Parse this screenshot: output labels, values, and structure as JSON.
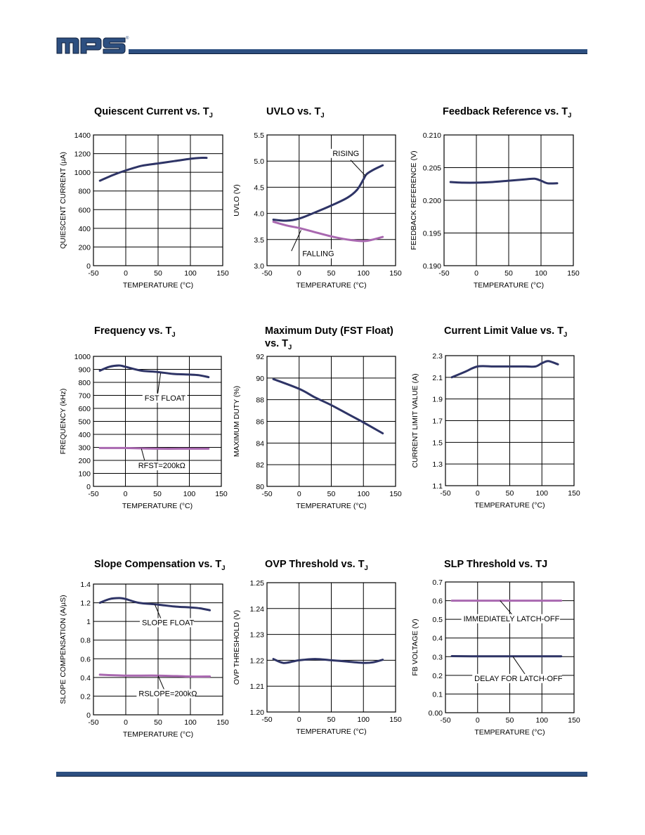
{
  "brand": {
    "logo_text": "mps",
    "registered": "®",
    "primary_color": "#2d4f80",
    "curve_dark": "#2e3466",
    "curve_light": "#a968b0"
  },
  "chart_data": [
    {
      "id": "quiescent",
      "type": "line",
      "title": "Quiescent Current vs. T",
      "title_sub": "J",
      "xlabel": "TEMPERATURE (°C)",
      "ylabel": "QUIESCENT CURRENT (µA)",
      "xlim": [
        -50,
        150
      ],
      "ylim": [
        0,
        1400
      ],
      "xticks": [
        -50,
        0,
        50,
        100,
        150
      ],
      "yticks": [
        0,
        200,
        400,
        600,
        800,
        1000,
        1200,
        1400
      ],
      "ytick_labels": [
        "0",
        "200",
        "400",
        "600",
        "800",
        "1000",
        "1200",
        "1400"
      ],
      "grid": true,
      "series": [
        {
          "color": "#2e3466",
          "x": [
            -40,
            -20,
            0,
            25,
            50,
            75,
            100,
            115,
            125
          ],
          "y": [
            910,
            970,
            1020,
            1070,
            1095,
            1120,
            1145,
            1155,
            1155
          ]
        }
      ],
      "annotations": []
    },
    {
      "id": "uvlo",
      "type": "line",
      "title": "UVLO vs. T",
      "title_sub": "J",
      "xlabel": "TEMPERATURE (°C)",
      "ylabel": "UVLO (V)",
      "xlim": [
        -50,
        150
      ],
      "ylim": [
        3.0,
        5.5
      ],
      "xticks": [
        -50,
        0,
        50,
        100,
        150
      ],
      "yticks": [
        3.0,
        3.5,
        4.0,
        4.5,
        5.0,
        5.5
      ],
      "ytick_labels": [
        "3.0",
        "3.5",
        "4.0",
        "4.5",
        "5.0",
        "5.5"
      ],
      "grid": true,
      "series": [
        {
          "name": "RISING",
          "color": "#2e3466",
          "x": [
            -40,
            -20,
            0,
            25,
            50,
            75,
            90,
            100,
            105,
            115,
            130
          ],
          "y": [
            3.88,
            3.86,
            3.9,
            4.02,
            4.15,
            4.3,
            4.45,
            4.65,
            4.75,
            4.83,
            4.92
          ]
        },
        {
          "name": "FALLING",
          "color": "#a968b0",
          "x": [
            -40,
            -20,
            0,
            25,
            50,
            75,
            100,
            115,
            130
          ],
          "y": [
            3.84,
            3.77,
            3.72,
            3.64,
            3.56,
            3.5,
            3.47,
            3.5,
            3.55
          ]
        }
      ],
      "annotations": [
        {
          "text": "RISING",
          "x": 52,
          "y": 5.1,
          "lx1": 80,
          "ly1": 5.02,
          "lx2": 103,
          "ly2": 4.72
        },
        {
          "text": "FALLING",
          "x": 5,
          "y": 3.18,
          "lx1": -12,
          "ly1": 3.28,
          "lx2": 3,
          "ly2": 3.68
        }
      ]
    },
    {
      "id": "feedback",
      "type": "line",
      "title": "Feedback Reference vs. T",
      "title_sub": "J",
      "xlabel": "TEMPERATURE (°C)",
      "ylabel": "FEEDBACK REFERENCE (V)",
      "xlim": [
        -50,
        150
      ],
      "ylim": [
        0.19,
        0.21
      ],
      "xticks": [
        -50,
        0,
        50,
        100,
        150
      ],
      "yticks": [
        0.19,
        0.195,
        0.2,
        0.205,
        0.21
      ],
      "ytick_labels": [
        "0.190",
        "0.195",
        "0.200",
        "0.205",
        "0.210"
      ],
      "grid": true,
      "series": [
        {
          "color": "#2e3466",
          "x": [
            -40,
            -20,
            0,
            25,
            50,
            75,
            90,
            100,
            110,
            125
          ],
          "y": [
            0.2028,
            0.2027,
            0.2027,
            0.2028,
            0.203,
            0.2032,
            0.2033,
            0.203,
            0.2026,
            0.2026
          ]
        }
      ],
      "annotations": []
    },
    {
      "id": "frequency",
      "type": "line",
      "title": "Frequency vs. T",
      "title_sub": "J",
      "xlabel": "TEMPERATURE (°C)",
      "ylabel": "FREQUENCY (kHz)",
      "xlim": [
        -50,
        150
      ],
      "ylim": [
        0,
        1000
      ],
      "xticks": [
        -50,
        0,
        50,
        100,
        150
      ],
      "yticks": [
        0,
        100,
        200,
        300,
        400,
        500,
        600,
        700,
        800,
        900,
        1000
      ],
      "ytick_labels": [
        "0",
        "100",
        "200",
        "300",
        "400",
        "500",
        "600",
        "700",
        "800",
        "900",
        "1000"
      ],
      "grid": true,
      "series": [
        {
          "name": "FST FLOAT",
          "color": "#2e3466",
          "x": [
            -40,
            -25,
            -10,
            0,
            25,
            50,
            75,
            100,
            115,
            130
          ],
          "y": [
            890,
            920,
            930,
            920,
            890,
            880,
            865,
            860,
            855,
            840
          ]
        },
        {
          "name": "RFST=200kΩ",
          "color": "#a968b0",
          "x": [
            -40,
            0,
            50,
            100,
            130
          ],
          "y": [
            295,
            295,
            290,
            290,
            290
          ]
        }
      ],
      "annotations": [
        {
          "text": "FST FLOAT",
          "x": 30,
          "y": 660,
          "lx1": 50,
          "ly1": 695,
          "lx2": 55,
          "ly2": 870
        },
        {
          "text": "RFST=200kΩ",
          "x": 20,
          "y": 140,
          "lx1": 30,
          "ly1": 200,
          "lx2": 25,
          "ly2": 290
        }
      ]
    },
    {
      "id": "maxduty",
      "type": "line",
      "title": "Maximum Duty (FST Float)",
      "title_line2": "vs. T",
      "title_sub": "J",
      "xlabel": "TEMPERATURE (°C)",
      "ylabel": "MAXIMUM DUTY (%)",
      "xlim": [
        -50,
        150
      ],
      "ylim": [
        80,
        92
      ],
      "xticks": [
        -50,
        0,
        50,
        100,
        150
      ],
      "yticks": [
        80,
        82,
        84,
        86,
        88,
        90,
        92
      ],
      "ytick_labels": [
        "80",
        "82",
        "84",
        "86",
        "88",
        "90",
        "92"
      ],
      "grid": true,
      "series": [
        {
          "color": "#2e3466",
          "x": [
            -40,
            0,
            25,
            50,
            75,
            100,
            130
          ],
          "y": [
            89.9,
            89.0,
            88.2,
            87.5,
            86.7,
            85.9,
            84.9
          ]
        }
      ],
      "annotations": []
    },
    {
      "id": "currentlimit",
      "type": "line",
      "title": "Current Limit Value vs. T",
      "title_sub": "J",
      "xlabel": "TEMPERATURE (°C)",
      "ylabel": "CURRENT LIMIT VALUE (A)",
      "xlim": [
        -50,
        150
      ],
      "ylim": [
        1.1,
        2.3
      ],
      "xticks": [
        -50,
        0,
        50,
        100,
        150
      ],
      "yticks": [
        1.1,
        1.3,
        1.5,
        1.7,
        1.9,
        2.1,
        2.3
      ],
      "ytick_labels": [
        "1.1",
        "1.3",
        "1.5",
        "1.7",
        "1.9",
        "2.1",
        "2.3"
      ],
      "grid": true,
      "series": [
        {
          "color": "#2e3466",
          "x": [
            -40,
            -20,
            0,
            25,
            50,
            75,
            90,
            100,
            110,
            125
          ],
          "y": [
            2.1,
            2.15,
            2.2,
            2.2,
            2.2,
            2.2,
            2.2,
            2.23,
            2.25,
            2.22
          ]
        }
      ],
      "annotations": []
    },
    {
      "id": "slope",
      "type": "line",
      "title": "Slope Compensation vs. T",
      "title_sub": "J",
      "xlabel": "TEMPERATURE (°C)",
      "ylabel": "SLOPE COMPENSATION (A/µS)",
      "xlim": [
        -50,
        150
      ],
      "ylim": [
        0,
        1.4
      ],
      "xticks": [
        -50,
        0,
        50,
        100,
        150
      ],
      "yticks": [
        0,
        0.2,
        0.4,
        0.6,
        0.8,
        1.0,
        1.2,
        1.4
      ],
      "ytick_labels": [
        "0",
        "0.2",
        "0.4",
        "0.6",
        "0.8",
        "1",
        "1.2",
        "1.4"
      ],
      "grid": true,
      "series": [
        {
          "name": "SLOPE FLOAT",
          "color": "#2e3466",
          "x": [
            -40,
            -25,
            -10,
            0,
            20,
            50,
            75,
            100,
            115,
            130
          ],
          "y": [
            1.2,
            1.24,
            1.25,
            1.24,
            1.2,
            1.18,
            1.16,
            1.15,
            1.14,
            1.12
          ]
        },
        {
          "name": "RSLOPE=200kΩ",
          "color": "#a968b0",
          "x": [
            -40,
            0,
            50,
            100,
            130
          ],
          "y": [
            0.43,
            0.42,
            0.42,
            0.41,
            0.41
          ]
        }
      ],
      "annotations": [
        {
          "text": "SLOPE FLOAT",
          "x": 25,
          "y": 0.96,
          "lx1": 55,
          "ly1": 1.02,
          "lx2": 45,
          "ly2": 1.18
        },
        {
          "text": "RSLOPE=200kΩ",
          "x": 20,
          "y": 0.2,
          "lx1": 60,
          "ly1": 0.26,
          "lx2": 50,
          "ly2": 0.42
        }
      ]
    },
    {
      "id": "ovp",
      "type": "line",
      "title": "OVP Threshold vs. T",
      "title_sub": "J",
      "xlabel": "TEMPERATURE (°C)",
      "ylabel": "OVP THRESHOLD (V)",
      "xlim": [
        -50,
        150
      ],
      "ylim": [
        1.2,
        1.25
      ],
      "xticks": [
        -50,
        0,
        50,
        100,
        150
      ],
      "yticks": [
        1.2,
        1.21,
        1.22,
        1.23,
        1.24,
        1.25
      ],
      "ytick_labels": [
        "1.20",
        "1.21",
        "1.22",
        "1.23",
        "1.24",
        "1.25"
      ],
      "grid": true,
      "series": [
        {
          "color": "#2e3466",
          "x": [
            -40,
            -25,
            -10,
            0,
            25,
            50,
            75,
            100,
            115,
            130
          ],
          "y": [
            1.2205,
            1.219,
            1.2195,
            1.22,
            1.2205,
            1.22,
            1.2195,
            1.219,
            1.2192,
            1.2202
          ]
        }
      ],
      "annotations": []
    },
    {
      "id": "slp",
      "type": "line",
      "title": "SLP Threshold vs. TJ",
      "title_sub": "",
      "xlabel": "TEMPERATURE (°C)",
      "ylabel": "FB VOLTAGE (V)",
      "xlim": [
        -50,
        150
      ],
      "ylim": [
        0,
        0.7
      ],
      "xticks": [
        -50,
        0,
        50,
        100,
        150
      ],
      "yticks": [
        0,
        0.1,
        0.2,
        0.3,
        0.4,
        0.5,
        0.6,
        0.7
      ],
      "ytick_labels": [
        "0.00",
        "0.1",
        "0.2",
        "0.3",
        "0.4",
        "0.5",
        "0.6",
        "0.7"
      ],
      "grid": true,
      "series": [
        {
          "name": "IMMEDIATELY LATCH-OFF",
          "color": "#a968b0",
          "x": [
            -40,
            0,
            50,
            100,
            130
          ],
          "y": [
            0.6,
            0.6,
            0.6,
            0.6,
            0.6
          ]
        },
        {
          "name": "DELAY FOR LATCH-OFF",
          "color": "#2e3466",
          "x": [
            -40,
            0,
            50,
            100,
            130
          ],
          "y": [
            0.303,
            0.302,
            0.302,
            0.302,
            0.302
          ]
        }
      ],
      "annotations": [
        {
          "text": "IMMEDIATELY LATCH-OFF",
          "x": -22,
          "y": 0.49,
          "lx1": 55,
          "ly1": 0.52,
          "lx2": 35,
          "ly2": 0.6
        },
        {
          "text": "DELAY FOR LATCH-OFF",
          "x": -5,
          "y": 0.17,
          "lx1": 75,
          "ly1": 0.2,
          "lx2": 55,
          "ly2": 0.3
        }
      ]
    }
  ]
}
